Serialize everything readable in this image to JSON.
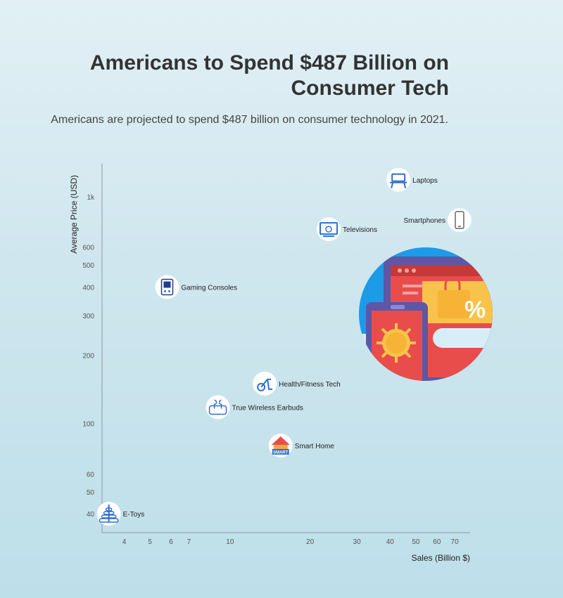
{
  "header": {
    "title_line1": "Americans to Spend $487 Billion on",
    "title_line2": "Consumer Tech",
    "subtitle": "Americans are projected to spend $487 billion on consumer technology in 2021."
  },
  "colors": {
    "axis": "#8a9aa2",
    "icon_circle": "#ffffff",
    "icon_blue": "#2f6fd1",
    "hero_sky": "#1d9be8",
    "hero_red": "#e94d4b",
    "hero_purple": "#5d57a6",
    "hero_yellow": "#f7c34a"
  },
  "chart_data": {
    "type": "scatter",
    "title": "",
    "xlabel": "Sales (Billion $)",
    "ylabel": "Average Price (USD)",
    "x_scale": "log",
    "y_scale": "log",
    "xlim": [
      3.3,
      80
    ],
    "ylim": [
      33,
      1400
    ],
    "x_ticks": [
      {
        "value": 4,
        "label": "4"
      },
      {
        "value": 5,
        "label": "5"
      },
      {
        "value": 6,
        "label": "6"
      },
      {
        "value": 7,
        "label": "7"
      },
      {
        "value": 10,
        "label": "10"
      },
      {
        "value": 20,
        "label": "20"
      },
      {
        "value": 30,
        "label": "30"
      },
      {
        "value": 40,
        "label": "40"
      },
      {
        "value": 50,
        "label": "50"
      },
      {
        "value": 60,
        "label": "60"
      },
      {
        "value": 70,
        "label": "70"
      }
    ],
    "y_ticks": [
      {
        "value": 40,
        "label": "40"
      },
      {
        "value": 50,
        "label": "50"
      },
      {
        "value": 60,
        "label": "60"
      },
      {
        "value": 100,
        "label": "100"
      },
      {
        "value": 200,
        "label": "200"
      },
      {
        "value": 300,
        "label": "300"
      },
      {
        "value": 400,
        "label": "400"
      },
      {
        "value": 500,
        "label": "500"
      },
      {
        "value": 600,
        "label": "600"
      },
      {
        "value": 1000,
        "label": "1k"
      }
    ],
    "grid": false,
    "points": [
      {
        "label": "Laptops",
        "x": 43,
        "y": 1190,
        "icon": "laptop-desk-icon"
      },
      {
        "label": "Smartphones",
        "x": 73,
        "y": 790,
        "icon": "smartphone-icon"
      },
      {
        "label": "Televisions",
        "x": 23.5,
        "y": 720,
        "icon": "television-icon"
      },
      {
        "label": "Gaming Consoles",
        "x": 5.8,
        "y": 400,
        "icon": "gaming-console-icon"
      },
      {
        "label": "Health/Fitness Tech",
        "x": 13.5,
        "y": 150,
        "icon": "exercise-bike-icon"
      },
      {
        "label": "True Wireless Earbuds",
        "x": 9,
        "y": 118,
        "icon": "earbuds-icon"
      },
      {
        "label": "Smart Home",
        "x": 15.5,
        "y": 80,
        "icon": "smart-home-icon"
      },
      {
        "label": "E-Toys",
        "x": 3.5,
        "y": 40,
        "icon": "stacking-toy-icon"
      }
    ]
  }
}
